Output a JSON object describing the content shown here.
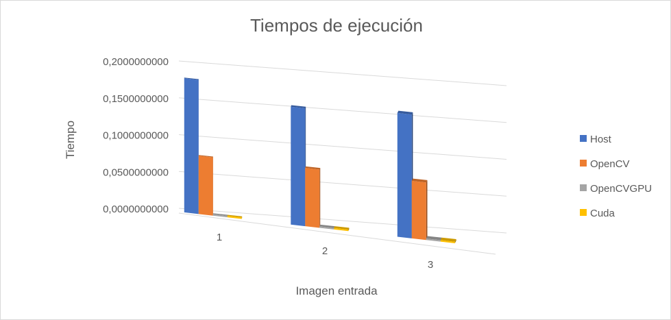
{
  "chart_data": {
    "type": "bar",
    "title": "Tiempos de ejecución",
    "xlabel": "Imagen entrada",
    "ylabel": "Tiempo",
    "categories": [
      "1",
      "2",
      "3"
    ],
    "y_ticks": [
      "0,0000000000",
      "0,0500000000",
      "0,1000000000",
      "0,1500000000",
      "0,2000000000"
    ],
    "ylim": [
      0,
      0.2
    ],
    "grid": true,
    "legend": "right",
    "style": "3d-clustered-column",
    "series": [
      {
        "name": "Host",
        "color": "#4472c4",
        "values": [
          0.182,
          0.16,
          0.168
        ]
      },
      {
        "name": "OpenCV",
        "color": "#ed7d31",
        "values": [
          0.079,
          0.079,
          0.078
        ]
      },
      {
        "name": "OpenCVGPU",
        "color": "#a5a5a5",
        "values": [
          0.002,
          0.002,
          0.002
        ]
      },
      {
        "name": "Cuda",
        "color": "#ffc000",
        "values": [
          0.002,
          0.002,
          0.002
        ]
      }
    ]
  }
}
